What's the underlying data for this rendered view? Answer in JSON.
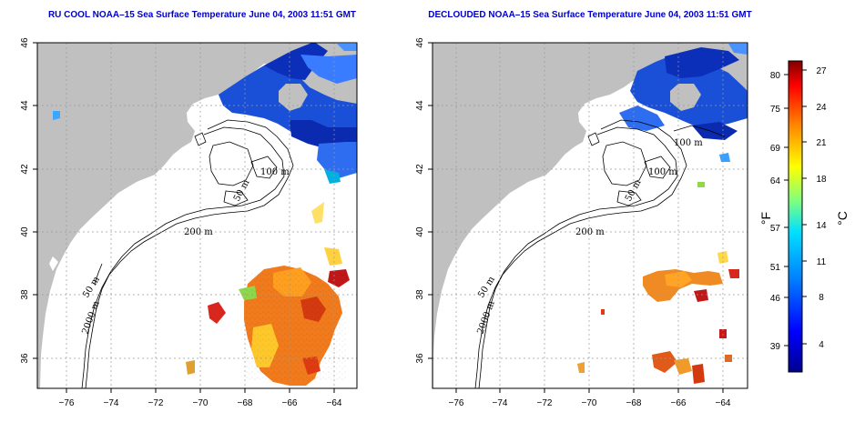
{
  "colors": {
    "title_blue": "#0000cc",
    "land": "#c0c0c0",
    "grid": "#9a9a9a",
    "cold": "#0000aa",
    "warm": "#cc0000"
  },
  "panels": [
    {
      "title": "RU COOL NOAA–15 Sea Surface Temperature June 04, 2003 11:51 GMT",
      "contour_labels": [
        "100 m",
        "50 m",
        "200 m",
        "50 m",
        "2000 m"
      ]
    },
    {
      "title": "DECLOUDED NOAA–15 Sea Surface Temperature June 04, 2003 11:51 GMT",
      "contour_labels": [
        "100 m",
        "100 m",
        "50 m",
        "200 m",
        "50 m",
        "2000 m"
      ]
    }
  ],
  "axes": {
    "x_ticks": [
      "−76",
      "−74",
      "−72",
      "−70",
      "−68",
      "−66",
      "−64"
    ],
    "y_ticks": [
      "36",
      "38",
      "40",
      "42",
      "44",
      "46"
    ]
  },
  "colorbar": {
    "fahrenheit_label": "°F",
    "celsius_label": "°C",
    "fahrenheit_ticks": [
      "39",
      "46",
      "51",
      "57",
      "64",
      "69",
      "75",
      "80"
    ],
    "celsius_ticks": [
      "4",
      "8",
      "11",
      "14",
      "18",
      "21",
      "24",
      "27"
    ]
  }
}
